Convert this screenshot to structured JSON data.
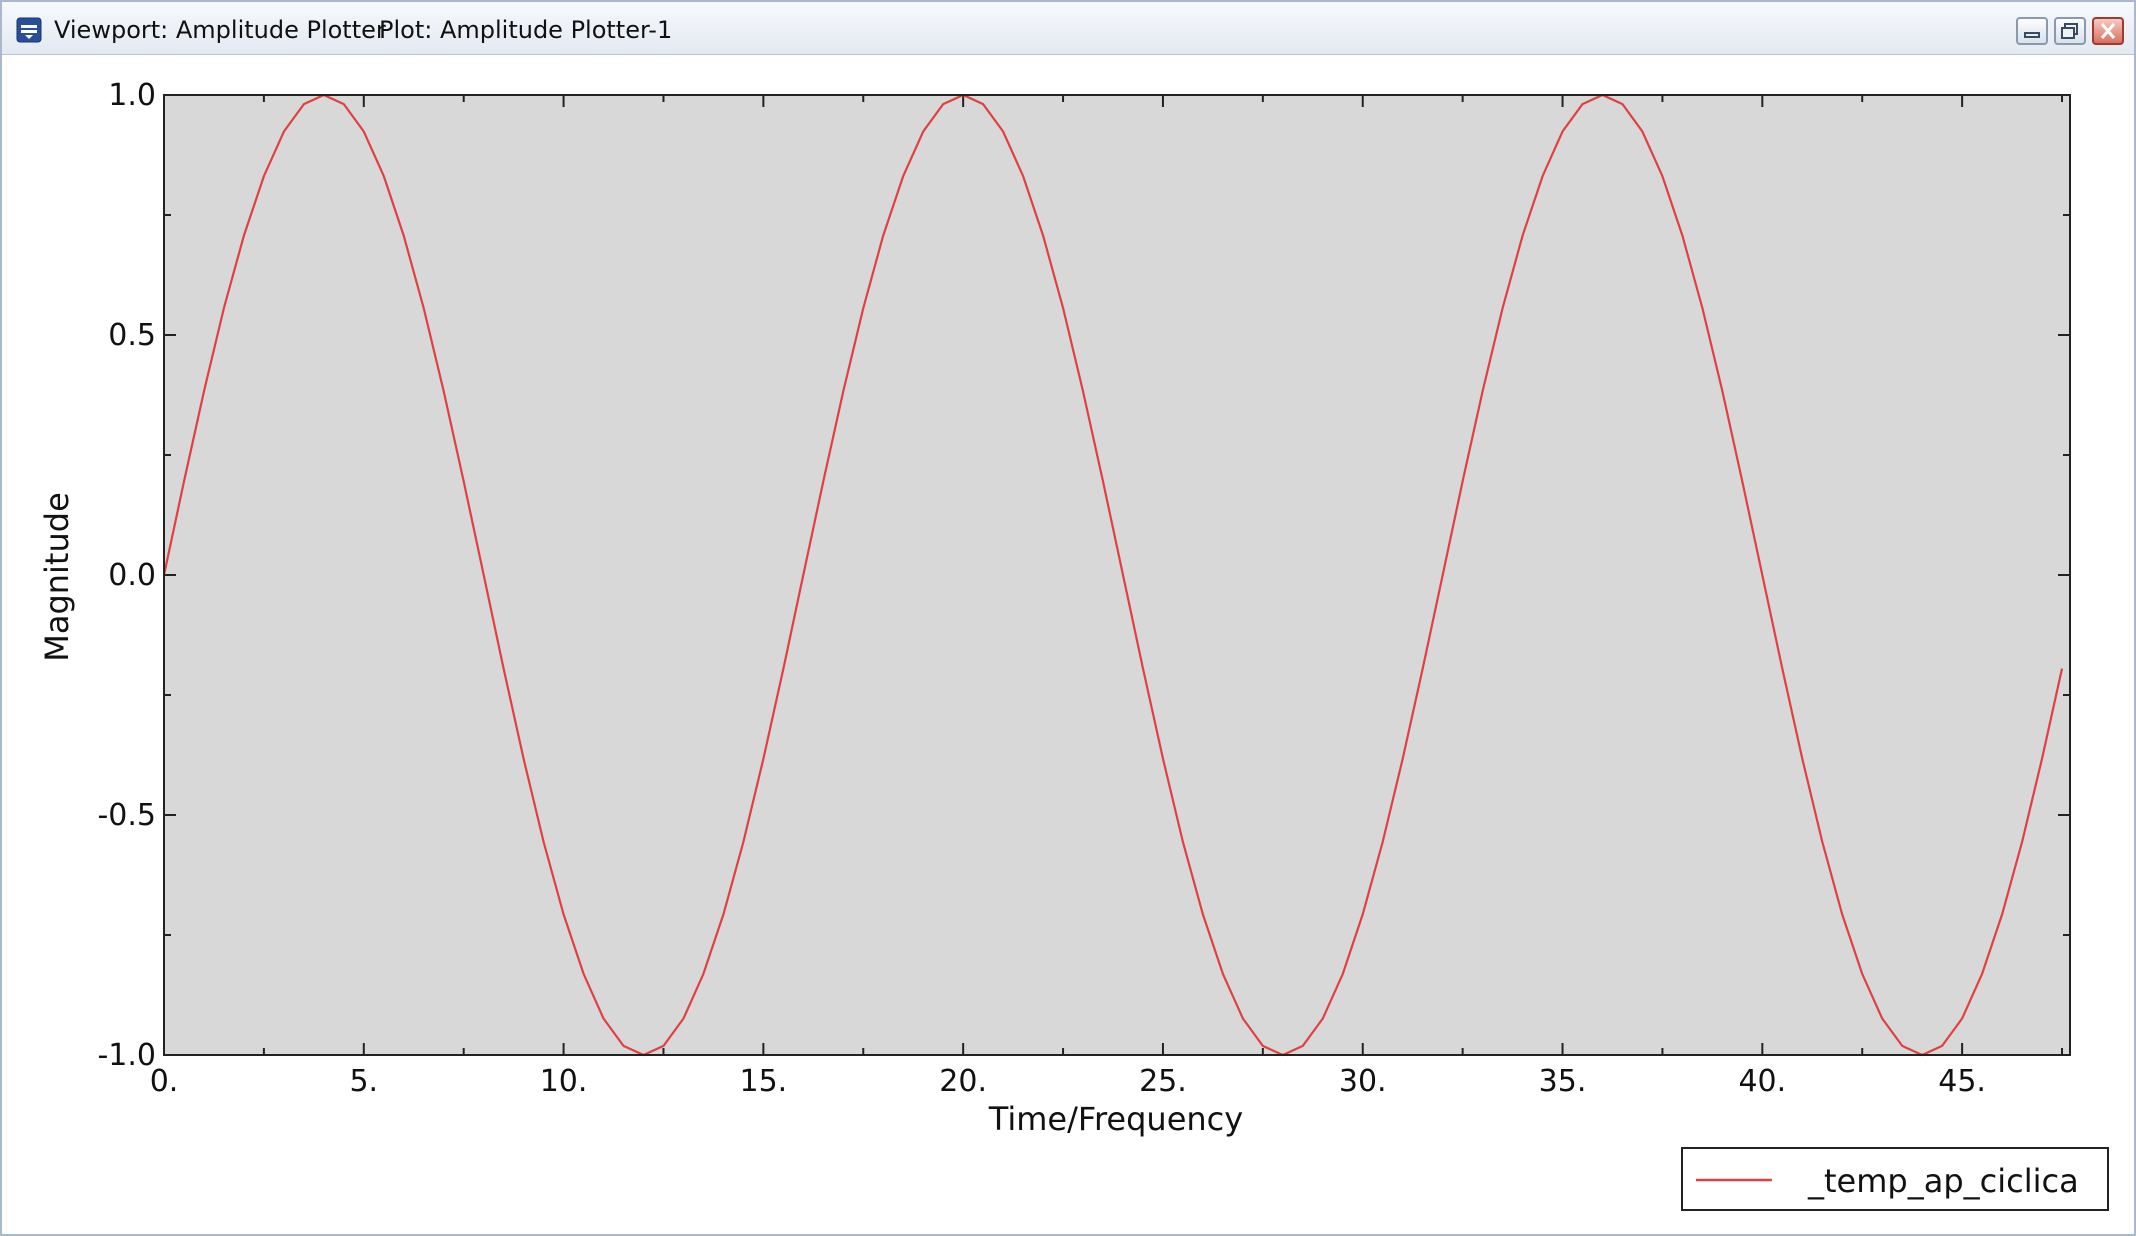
{
  "window": {
    "viewport_title": "Viewport: Amplitude Plotter",
    "plot_title": "Plot: Amplitude Plotter-1",
    "icon": "viewport-icon",
    "controls": [
      "minimize-icon",
      "maximize-icon",
      "close-icon"
    ]
  },
  "colors": {
    "plot_background": "#d8d8d8",
    "series_line": "#e04040",
    "axis": "#222222",
    "close_button": "#c0392b"
  },
  "chart_data": {
    "type": "line",
    "xlabel": "Time/Frequency",
    "ylabel": "Magnitude",
    "xlim": [
      0,
      47.7
    ],
    "ylim": [
      -1.0,
      1.0
    ],
    "xticks": [
      0,
      5,
      10,
      15,
      20,
      25,
      30,
      35,
      40,
      45
    ],
    "xtick_labels": [
      "0.",
      "5.",
      "10.",
      "15.",
      "20.",
      "25.",
      "30.",
      "35.",
      "40.",
      "45."
    ],
    "yticks": [
      1.0,
      0.5,
      0.0,
      -0.5,
      -1.0
    ],
    "ytick_labels": [
      "1.0",
      "0.5",
      "0.0",
      "-0.5",
      "-1.0"
    ],
    "grid": false,
    "legend_position": "bottom-right, outside plot",
    "series": [
      {
        "name": "_temp_ap_ciclica",
        "x": [
          0,
          0.5,
          1,
          1.5,
          2,
          2.5,
          3,
          3.5,
          4,
          4.5,
          5,
          5.5,
          6,
          6.5,
          7,
          7.5,
          8,
          8.5,
          9,
          9.5,
          10,
          10.5,
          11,
          11.5,
          12,
          12.5,
          13,
          13.5,
          14,
          14.5,
          15,
          15.5,
          16,
          16.5,
          17,
          17.5,
          18,
          18.5,
          19,
          19.5,
          20,
          20.5,
          21,
          21.5,
          22,
          22.5,
          23,
          23.5,
          24,
          24.5,
          25,
          25.5,
          26,
          26.5,
          27,
          27.5,
          28,
          28.5,
          29,
          29.5,
          30,
          30.5,
          31,
          31.5,
          32,
          32.5,
          33,
          33.5,
          34,
          34.5,
          35,
          35.5,
          36,
          36.5,
          37,
          37.5,
          38,
          38.5,
          39,
          39.5,
          40,
          40.5,
          41,
          41.5,
          42,
          42.5,
          43,
          43.5,
          44,
          44.5,
          45,
          45.5,
          46,
          46.5,
          47,
          47.5
        ],
        "y": [
          0,
          0.195,
          0.383,
          0.556,
          0.707,
          0.831,
          0.924,
          0.981,
          1.0,
          0.981,
          0.924,
          0.831,
          0.707,
          0.556,
          0.383,
          0.195,
          0,
          -0.195,
          -0.383,
          -0.556,
          -0.707,
          -0.831,
          -0.924,
          -0.981,
          -1.0,
          -0.981,
          -0.924,
          -0.831,
          -0.707,
          -0.556,
          -0.383,
          -0.195,
          0,
          0.195,
          0.383,
          0.556,
          0.707,
          0.831,
          0.924,
          0.981,
          1.0,
          0.981,
          0.924,
          0.831,
          0.707,
          0.556,
          0.383,
          0.195,
          0,
          -0.195,
          -0.383,
          -0.556,
          -0.707,
          -0.831,
          -0.924,
          -0.981,
          -1.0,
          -0.981,
          -0.924,
          -0.831,
          -0.707,
          -0.556,
          -0.383,
          -0.195,
          0,
          0.195,
          0.383,
          0.556,
          0.707,
          0.831,
          0.924,
          0.981,
          1.0,
          0.981,
          0.924,
          0.831,
          0.707,
          0.556,
          0.383,
          0.195,
          0,
          -0.195,
          -0.383,
          -0.556,
          -0.707,
          -0.831,
          -0.924,
          -0.981,
          -1.0,
          -0.981,
          -0.924,
          -0.831,
          -0.707,
          -0.556,
          -0.383,
          -0.195
        ]
      }
    ]
  }
}
